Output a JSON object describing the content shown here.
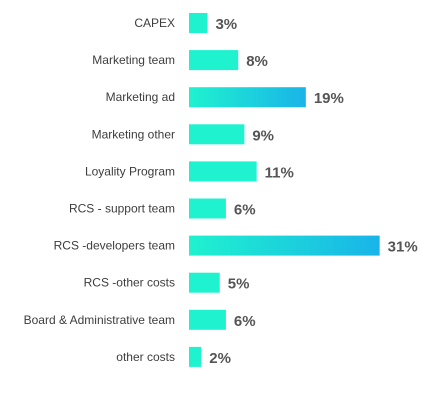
{
  "colors": {
    "bar_start": "#1ff2cf",
    "bar_end": "#19b4e8",
    "label_text": "#3d3d3d",
    "value_text": "#555555"
  },
  "chart_data": {
    "type": "bar",
    "orientation": "horizontal",
    "categories": [
      "CAPEX",
      "Marketing team",
      "Marketing ad",
      "Marketing other",
      "Loyality Program",
      "RCS - support team",
      "RCS -developers team",
      "RCS -other costs",
      "Board & Administrative team",
      "other costs"
    ],
    "values": [
      3,
      8,
      19,
      9,
      11,
      6,
      31,
      5,
      6,
      2
    ],
    "value_labels": [
      "3%",
      "8%",
      "19%",
      "9%",
      "11%",
      "6%",
      "31%",
      "5%",
      "6%",
      "2%"
    ],
    "unit": "%",
    "grid": false,
    "legend": "none"
  }
}
